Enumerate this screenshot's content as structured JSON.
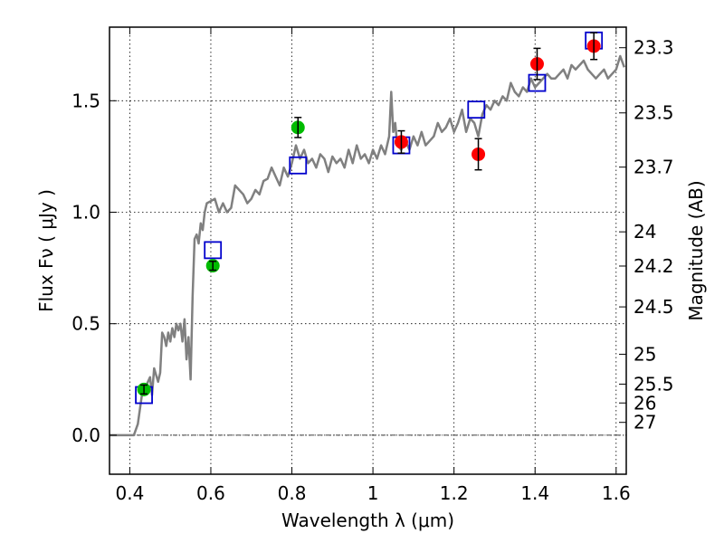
{
  "chart_data": {
    "type": "scatter",
    "title": "",
    "xlabel": "Wavelength  λ (μm)",
    "ylabel": "Flux  Fν  ( μJy )",
    "ylabel_right": "Magnitude (AB)",
    "xlim": [
      0.35,
      1.625
    ],
    "ylim": [
      -0.175,
      1.83
    ],
    "grid": true,
    "legend": "none",
    "x_ticks": [
      0.4,
      0.6,
      0.8,
      1.0,
      1.2,
      1.4,
      1.6
    ],
    "x_tick_labels": [
      "0.4",
      "0.6",
      "0.8",
      "1",
      "1.2",
      "1.4",
      "1.6"
    ],
    "y_ticks": [
      0.0,
      0.5,
      1.0,
      1.5
    ],
    "y_tick_labels": [
      "0.0",
      "0.5",
      "1.0",
      "1.5"
    ],
    "right_axis_magnitudes": [
      "23.3",
      "23.5",
      "23.7",
      "24",
      "24.2",
      "24.5",
      "25",
      "25.5",
      "26",
      "27"
    ],
    "colors": {
      "spectrum": "#808080",
      "model_squares": "#0000cc",
      "green_points": "#00bb00",
      "red_points": "#ff0000",
      "errorbars": "#000000"
    },
    "series": [
      {
        "type": "line",
        "x": [
          0.35,
          0.41,
          0.42,
          0.43,
          0.44,
          0.45,
          0.455,
          0.46,
          0.47,
          0.475,
          0.48,
          0.485,
          0.49,
          0.495,
          0.5,
          0.505,
          0.51,
          0.515,
          0.52,
          0.525,
          0.53,
          0.535,
          0.54,
          0.545,
          0.55,
          0.555,
          0.56,
          0.565,
          0.57,
          0.575,
          0.58,
          0.585,
          0.59,
          0.6,
          0.61,
          0.62,
          0.63,
          0.64,
          0.65,
          0.66,
          0.67,
          0.68,
          0.69,
          0.7,
          0.71,
          0.72,
          0.73,
          0.74,
          0.75,
          0.76,
          0.77,
          0.78,
          0.79,
          0.8,
          0.81,
          0.82,
          0.83,
          0.84,
          0.85,
          0.86,
          0.87,
          0.88,
          0.89,
          0.9,
          0.91,
          0.92,
          0.93,
          0.94,
          0.95,
          0.96,
          0.97,
          0.98,
          0.99,
          1.0,
          1.01,
          1.02,
          1.03,
          1.04,
          1.045,
          1.05,
          1.055,
          1.06,
          1.07,
          1.08,
          1.09,
          1.1,
          1.11,
          1.12,
          1.13,
          1.14,
          1.15,
          1.16,
          1.17,
          1.18,
          1.19,
          1.2,
          1.21,
          1.22,
          1.23,
          1.24,
          1.25,
          1.26,
          1.27,
          1.28,
          1.29,
          1.3,
          1.31,
          1.32,
          1.33,
          1.34,
          1.35,
          1.36,
          1.37,
          1.38,
          1.39,
          1.4,
          1.41,
          1.42,
          1.43,
          1.44,
          1.45,
          1.46,
          1.47,
          1.48,
          1.49,
          1.5,
          1.51,
          1.52,
          1.53,
          1.54,
          1.55,
          1.56,
          1.57,
          1.58,
          1.59,
          1.6,
          1.61,
          1.62
        ],
        "y": [
          0.0,
          0.0,
          0.05,
          0.18,
          0.22,
          0.26,
          0.18,
          0.3,
          0.24,
          0.28,
          0.46,
          0.44,
          0.4,
          0.46,
          0.42,
          0.48,
          0.44,
          0.5,
          0.47,
          0.5,
          0.42,
          0.52,
          0.34,
          0.44,
          0.25,
          0.62,
          0.88,
          0.9,
          0.86,
          0.95,
          0.92,
          1.0,
          1.04,
          1.05,
          1.06,
          1.0,
          1.04,
          1.0,
          1.02,
          1.12,
          1.1,
          1.08,
          1.04,
          1.06,
          1.1,
          1.08,
          1.14,
          1.15,
          1.2,
          1.16,
          1.12,
          1.2,
          1.16,
          1.22,
          1.3,
          1.24,
          1.28,
          1.22,
          1.24,
          1.2,
          1.26,
          1.24,
          1.18,
          1.25,
          1.22,
          1.24,
          1.2,
          1.28,
          1.22,
          1.3,
          1.24,
          1.26,
          1.22,
          1.28,
          1.24,
          1.3,
          1.26,
          1.34,
          1.54,
          1.36,
          1.4,
          1.3,
          1.28,
          1.32,
          1.28,
          1.34,
          1.3,
          1.36,
          1.3,
          1.32,
          1.34,
          1.4,
          1.36,
          1.38,
          1.42,
          1.36,
          1.4,
          1.46,
          1.36,
          1.42,
          1.4,
          1.34,
          1.44,
          1.48,
          1.46,
          1.5,
          1.48,
          1.52,
          1.5,
          1.58,
          1.54,
          1.52,
          1.56,
          1.54,
          1.6,
          1.56,
          1.58,
          1.6,
          1.62,
          1.6,
          1.6,
          1.62,
          1.64,
          1.6,
          1.66,
          1.64,
          1.66,
          1.68,
          1.64,
          1.62,
          1.6,
          1.62,
          1.64,
          1.6,
          1.62,
          1.64,
          1.7,
          1.65
        ]
      },
      {
        "type": "scatter",
        "marker": "square",
        "x": [
          0.435,
          0.605,
          0.815,
          1.07,
          1.255,
          1.405,
          1.545
        ],
        "y": [
          0.18,
          0.83,
          1.21,
          1.3,
          1.46,
          1.58,
          1.77
        ]
      },
      {
        "type": "scatter",
        "marker": "circle",
        "x": [
          0.435,
          0.605,
          0.815
        ],
        "y": [
          0.205,
          0.76,
          1.38
        ],
        "yerr": [
          0.02,
          0.02,
          0.045
        ]
      },
      {
        "type": "scatter",
        "marker": "circle",
        "x": [
          1.07,
          1.26,
          1.405,
          1.545
        ],
        "y": [
          1.315,
          1.26,
          1.665,
          1.745
        ],
        "yerr": [
          0.05,
          0.07,
          0.07,
          0.06
        ]
      }
    ]
  }
}
